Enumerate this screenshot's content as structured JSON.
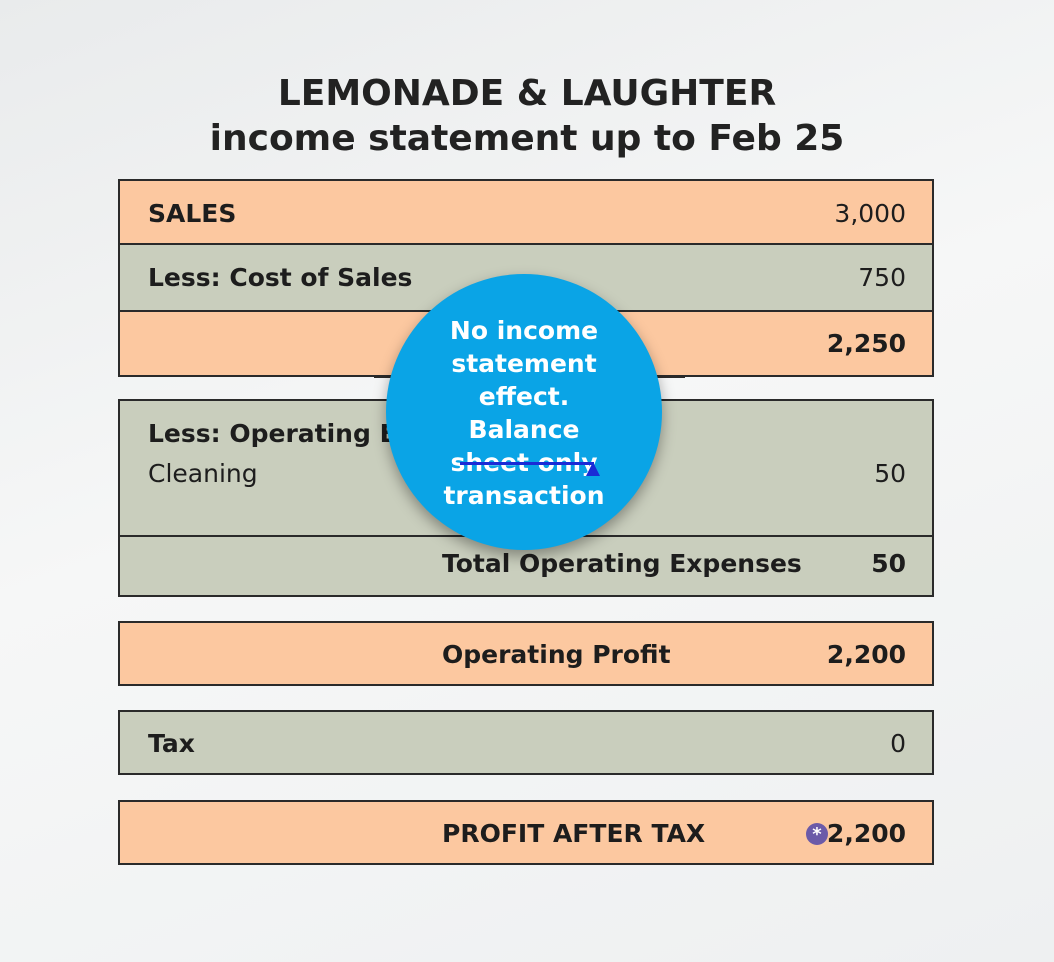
{
  "header": {
    "title": "LEMONADE & LAUGHTER",
    "subtitle": "income statement up to Feb 25"
  },
  "statement": {
    "sales": {
      "label": "SALES",
      "value": "3,000"
    },
    "cost_of_sales": {
      "label": "Less: Cost of Sales",
      "value": "750"
    },
    "gross_profit": {
      "value": "2,250"
    },
    "operating_expenses": {
      "label": "Less: Operating Ex",
      "items": [
        {
          "label": "Cleaning",
          "value": "50"
        }
      ],
      "total_label": "Total Operating Expenses",
      "total_value": "50"
    },
    "operating_profit": {
      "label": "Operating Profit",
      "value": "2,200"
    },
    "tax": {
      "label": "Tax",
      "value": "0"
    },
    "profit_after_tax": {
      "label": "PROFIT AFTER TAX",
      "value": "2,200",
      "marker": "*"
    }
  },
  "callout": {
    "lines": [
      "No income",
      "statement",
      "effect.",
      "Balance",
      "sheet only",
      "transaction"
    ],
    "color": "#0aa4e6",
    "strike_color": "#1a2bd6"
  },
  "colors": {
    "peach": "#fcc8a0",
    "grey": "#c9cebd",
    "marker": "#6b5aa8"
  }
}
